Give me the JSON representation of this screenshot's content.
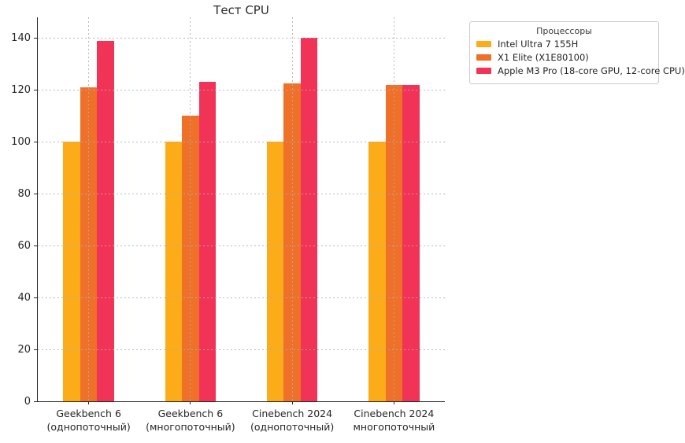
{
  "title": "Тест CPU",
  "legend": {
    "title": "Процессоры"
  },
  "chart_data": {
    "type": "bar",
    "title": "Тест CPU",
    "categories": [
      "Geekbench 6\n(однопоточный)",
      "Geekbench 6\n(многопоточный)",
      "Cinebench 2024\n(однопоточный)",
      "Cinebench 2024\nмногопоточный"
    ],
    "series": [
      {
        "name": "Intel Ultra 7 155H",
        "color": "#FBAC18",
        "values": [
          100,
          100,
          100,
          100
        ]
      },
      {
        "name": "X1 Elite (X1E80100)",
        "color": "#EF7028",
        "values": [
          121,
          110,
          122.5,
          122
        ]
      },
      {
        "name": "Apple M3 Pro (18-core GPU, 12-core CPU)",
        "color": "#F23358",
        "values": [
          139,
          123,
          140,
          122
        ]
      }
    ],
    "xlabel": "",
    "ylabel": "",
    "ylim": [
      0,
      148
    ],
    "yticks": [
      0,
      20,
      40,
      60,
      80,
      100,
      120,
      140
    ],
    "grid": true,
    "grid_style": "dotted",
    "legend_title": "Процессоры",
    "legend_position": "outside-upper-right",
    "bar_group_width_ratio": 0.5
  }
}
